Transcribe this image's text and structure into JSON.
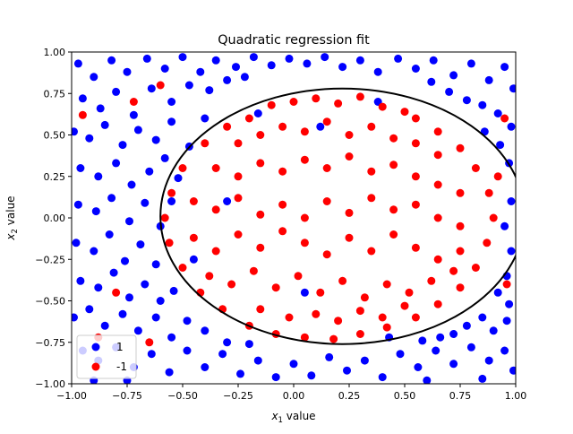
{
  "chart_data": {
    "type": "scatter",
    "title": "Quadratic regression fit",
    "xlabel_base": "x",
    "xlabel_sub": "1",
    "xlabel_rest": " value",
    "ylabel_base": "x",
    "ylabel_sub": "2",
    "ylabel_rest": " value",
    "xlim": [
      -1.0,
      1.0
    ],
    "ylim": [
      -1.0,
      1.0
    ],
    "xticks": [
      -1.0,
      -0.75,
      -0.5,
      -0.25,
      0.0,
      0.25,
      0.5,
      0.75,
      1.0
    ],
    "yticks": [
      -1.0,
      -0.75,
      -0.5,
      -0.25,
      0.0,
      0.25,
      0.5,
      0.75,
      1.0
    ],
    "xtick_labels": [
      "−1.00",
      "−0.75",
      "−0.50",
      "−0.25",
      "0.00",
      "0.25",
      "0.50",
      "0.75",
      "1.00"
    ],
    "ytick_labels": [
      "−1.00",
      "−0.75",
      "−0.50",
      "−0.25",
      "0.00",
      "0.25",
      "0.50",
      "0.75",
      "1.00"
    ],
    "grid": false,
    "legend": {
      "placement": "lower-left",
      "entries": [
        {
          "label": "1",
          "color": "#0000ff"
        },
        {
          "label": "-1",
          "color": "#ff0000"
        }
      ]
    },
    "decision_boundary": {
      "shape": "ellipse",
      "center": [
        0.22,
        0.01
      ],
      "x_radius": 0.82,
      "y_radius": 0.77,
      "color": "#000000"
    },
    "series": [
      {
        "name": "1",
        "color": "#0000ff",
        "points": [
          [
            -0.97,
            0.93
          ],
          [
            -0.9,
            0.85
          ],
          [
            -0.82,
            0.95
          ],
          [
            -0.75,
            0.88
          ],
          [
            -0.66,
            0.96
          ],
          [
            -0.58,
            0.9
          ],
          [
            -0.5,
            0.97
          ],
          [
            -0.42,
            0.88
          ],
          [
            -0.35,
            0.95
          ],
          [
            -0.26,
            0.91
          ],
          [
            -0.18,
            0.97
          ],
          [
            -0.1,
            0.92
          ],
          [
            -0.02,
            0.96
          ],
          [
            0.06,
            0.93
          ],
          [
            0.14,
            0.97
          ],
          [
            0.22,
            0.91
          ],
          [
            0.3,
            0.95
          ],
          [
            0.38,
            0.88
          ],
          [
            0.47,
            0.96
          ],
          [
            0.55,
            0.9
          ],
          [
            0.63,
            0.95
          ],
          [
            0.72,
            0.86
          ],
          [
            0.8,
            0.93
          ],
          [
            0.88,
            0.83
          ],
          [
            0.95,
            0.91
          ],
          [
            0.99,
            0.78
          ],
          [
            -0.95,
            0.72
          ],
          [
            -0.87,
            0.66
          ],
          [
            -0.8,
            0.76
          ],
          [
            -0.72,
            0.62
          ],
          [
            -0.64,
            0.78
          ],
          [
            -0.55,
            0.7
          ],
          [
            -0.47,
            0.8
          ],
          [
            -0.38,
            0.77
          ],
          [
            -0.3,
            0.83
          ],
          [
            -0.22,
            0.85
          ],
          [
            0.62,
            0.82
          ],
          [
            0.7,
            0.76
          ],
          [
            0.78,
            0.71
          ],
          [
            0.85,
            0.68
          ],
          [
            0.92,
            0.63
          ],
          [
            0.98,
            0.55
          ],
          [
            -0.99,
            0.52
          ],
          [
            -0.92,
            0.48
          ],
          [
            -0.85,
            0.56
          ],
          [
            -0.77,
            0.44
          ],
          [
            -0.7,
            0.53
          ],
          [
            -0.62,
            0.47
          ],
          [
            -0.55,
            0.58
          ],
          [
            -0.47,
            0.43
          ],
          [
            -0.4,
            0.6
          ],
          [
            0.86,
            0.52
          ],
          [
            0.93,
            0.44
          ],
          [
            0.97,
            0.33
          ],
          [
            -0.96,
            0.3
          ],
          [
            -0.88,
            0.25
          ],
          [
            -0.8,
            0.33
          ],
          [
            -0.73,
            0.2
          ],
          [
            -0.65,
            0.28
          ],
          [
            -0.58,
            0.36
          ],
          [
            -0.52,
            0.24
          ],
          [
            -0.97,
            0.08
          ],
          [
            -0.89,
            0.04
          ],
          [
            -0.82,
            0.12
          ],
          [
            -0.74,
            -0.02
          ],
          [
            -0.67,
            0.09
          ],
          [
            -0.6,
            -0.05
          ],
          [
            0.98,
            0.1
          ],
          [
            0.95,
            -0.05
          ],
          [
            -0.98,
            -0.15
          ],
          [
            -0.9,
            -0.2
          ],
          [
            -0.83,
            -0.1
          ],
          [
            -0.76,
            -0.26
          ],
          [
            -0.69,
            -0.16
          ],
          [
            -0.62,
            -0.28
          ],
          [
            0.98,
            -0.2
          ],
          [
            0.96,
            -0.35
          ],
          [
            -0.96,
            -0.38
          ],
          [
            -0.88,
            -0.42
          ],
          [
            -0.81,
            -0.33
          ],
          [
            -0.74,
            -0.48
          ],
          [
            -0.67,
            -0.4
          ],
          [
            -0.6,
            -0.5
          ],
          [
            -0.54,
            -0.44
          ],
          [
            0.92,
            -0.45
          ],
          [
            0.97,
            -0.52
          ],
          [
            -0.99,
            -0.6
          ],
          [
            -0.92,
            -0.55
          ],
          [
            -0.85,
            -0.65
          ],
          [
            -0.77,
            -0.58
          ],
          [
            -0.7,
            -0.68
          ],
          [
            -0.62,
            -0.6
          ],
          [
            -0.55,
            -0.72
          ],
          [
            -0.48,
            -0.62
          ],
          [
            -0.4,
            -0.68
          ],
          [
            0.85,
            -0.6
          ],
          [
            0.9,
            -0.68
          ],
          [
            0.96,
            -0.62
          ],
          [
            0.78,
            -0.65
          ],
          [
            0.72,
            -0.7
          ],
          [
            -0.95,
            -0.8
          ],
          [
            -0.88,
            -0.86
          ],
          [
            -0.8,
            -0.78
          ],
          [
            -0.72,
            -0.9
          ],
          [
            -0.64,
            -0.82
          ],
          [
            -0.56,
            -0.93
          ],
          [
            -0.48,
            -0.8
          ],
          [
            -0.4,
            -0.9
          ],
          [
            -0.32,
            -0.82
          ],
          [
            -0.24,
            -0.94
          ],
          [
            -0.16,
            -0.86
          ],
          [
            -0.08,
            -0.96
          ],
          [
            0.0,
            -0.88
          ],
          [
            0.08,
            -0.95
          ],
          [
            0.16,
            -0.84
          ],
          [
            0.24,
            -0.92
          ],
          [
            0.32,
            -0.86
          ],
          [
            0.4,
            -0.96
          ],
          [
            0.48,
            -0.82
          ],
          [
            0.56,
            -0.9
          ],
          [
            0.64,
            -0.8
          ],
          [
            0.72,
            -0.88
          ],
          [
            0.8,
            -0.78
          ],
          [
            0.88,
            -0.86
          ],
          [
            0.95,
            -0.8
          ],
          [
            0.99,
            -0.92
          ],
          [
            -0.3,
            -0.75
          ],
          [
            0.58,
            -0.74
          ],
          [
            0.66,
            -0.72
          ],
          [
            -0.2,
            -0.76
          ],
          [
            0.12,
            0.55
          ],
          [
            0.43,
            -0.72
          ],
          [
            -0.16,
            0.63
          ],
          [
            0.38,
            0.7
          ],
          [
            -0.45,
            -0.25
          ],
          [
            -0.3,
            0.1
          ],
          [
            0.05,
            -0.45
          ],
          [
            -0.55,
            0.1
          ],
          [
            -0.9,
            -0.98
          ],
          [
            -0.75,
            -0.98
          ],
          [
            0.6,
            -0.98
          ],
          [
            0.85,
            -0.97
          ]
        ]
      },
      {
        "name": "-1",
        "color": "#ff0000",
        "points": [
          [
            -0.1,
            0.68
          ],
          [
            0.0,
            0.7
          ],
          [
            0.1,
            0.72
          ],
          [
            0.2,
            0.69
          ],
          [
            0.3,
            0.73
          ],
          [
            0.4,
            0.67
          ],
          [
            0.5,
            0.64
          ],
          [
            -0.2,
            0.6
          ],
          [
            -0.3,
            0.55
          ],
          [
            -0.4,
            0.45
          ],
          [
            -0.5,
            0.3
          ],
          [
            -0.55,
            0.15
          ],
          [
            -0.58,
            0.0
          ],
          [
            -0.56,
            -0.15
          ],
          [
            -0.5,
            -0.3
          ],
          [
            -0.42,
            -0.45
          ],
          [
            -0.32,
            -0.55
          ],
          [
            -0.2,
            -0.65
          ],
          [
            -0.08,
            -0.7
          ],
          [
            0.05,
            -0.72
          ],
          [
            0.18,
            -0.73
          ],
          [
            0.3,
            -0.7
          ],
          [
            0.42,
            -0.66
          ],
          [
            0.55,
            -0.6
          ],
          [
            0.65,
            -0.52
          ],
          [
            0.75,
            -0.42
          ],
          [
            0.82,
            -0.3
          ],
          [
            0.87,
            -0.15
          ],
          [
            0.9,
            0.0
          ],
          [
            0.88,
            0.15
          ],
          [
            0.82,
            0.3
          ],
          [
            0.75,
            0.42
          ],
          [
            0.65,
            0.52
          ],
          [
            0.55,
            0.6
          ],
          [
            -0.25,
            0.45
          ],
          [
            -0.15,
            0.5
          ],
          [
            -0.05,
            0.55
          ],
          [
            0.05,
            0.52
          ],
          [
            0.15,
            0.58
          ],
          [
            0.25,
            0.5
          ],
          [
            0.35,
            0.55
          ],
          [
            0.45,
            0.48
          ],
          [
            0.55,
            0.45
          ],
          [
            0.65,
            0.38
          ],
          [
            -0.35,
            0.3
          ],
          [
            -0.25,
            0.25
          ],
          [
            -0.15,
            0.33
          ],
          [
            -0.05,
            0.28
          ],
          [
            0.05,
            0.35
          ],
          [
            0.15,
            0.3
          ],
          [
            0.25,
            0.37
          ],
          [
            0.35,
            0.28
          ],
          [
            0.45,
            0.32
          ],
          [
            0.55,
            0.25
          ],
          [
            0.65,
            0.2
          ],
          [
            0.75,
            0.15
          ],
          [
            -0.45,
            0.1
          ],
          [
            -0.35,
            0.05
          ],
          [
            -0.25,
            0.12
          ],
          [
            -0.15,
            0.02
          ],
          [
            -0.05,
            0.08
          ],
          [
            0.05,
            0.0
          ],
          [
            0.15,
            0.1
          ],
          [
            0.25,
            0.03
          ],
          [
            0.35,
            0.12
          ],
          [
            0.45,
            0.05
          ],
          [
            0.55,
            0.08
          ],
          [
            0.65,
            0.0
          ],
          [
            0.75,
            -0.05
          ],
          [
            -0.45,
            -0.12
          ],
          [
            -0.35,
            -0.2
          ],
          [
            -0.25,
            -0.1
          ],
          [
            -0.15,
            -0.18
          ],
          [
            -0.05,
            -0.08
          ],
          [
            0.05,
            -0.15
          ],
          [
            0.15,
            -0.22
          ],
          [
            0.25,
            -0.12
          ],
          [
            0.35,
            -0.2
          ],
          [
            0.45,
            -0.1
          ],
          [
            0.55,
            -0.18
          ],
          [
            0.65,
            -0.25
          ],
          [
            0.75,
            -0.2
          ],
          [
            -0.38,
            -0.35
          ],
          [
            -0.28,
            -0.4
          ],
          [
            -0.18,
            -0.32
          ],
          [
            -0.08,
            -0.42
          ],
          [
            0.02,
            -0.35
          ],
          [
            0.12,
            -0.45
          ],
          [
            0.22,
            -0.38
          ],
          [
            0.32,
            -0.48
          ],
          [
            0.42,
            -0.4
          ],
          [
            0.52,
            -0.45
          ],
          [
            0.62,
            -0.38
          ],
          [
            0.72,
            -0.32
          ],
          [
            -0.15,
            -0.55
          ],
          [
            -0.02,
            -0.6
          ],
          [
            0.1,
            -0.58
          ],
          [
            0.2,
            -0.62
          ],
          [
            0.3,
            -0.56
          ],
          [
            0.4,
            -0.6
          ],
          [
            0.5,
            -0.53
          ],
          [
            -0.6,
            0.8
          ],
          [
            -0.88,
            -0.72
          ],
          [
            -0.95,
            0.62
          ],
          [
            -0.8,
            -0.45
          ],
          [
            -0.72,
            0.7
          ],
          [
            -0.65,
            -0.75
          ],
          [
            0.92,
            0.25
          ],
          [
            0.95,
            0.6
          ],
          [
            0.96,
            -0.4
          ]
        ]
      }
    ]
  }
}
